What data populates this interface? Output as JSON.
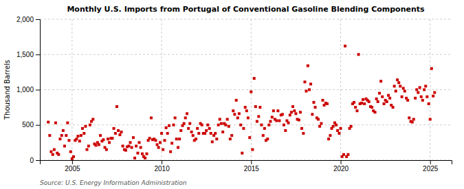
{
  "chart_data": {
    "type": "scatter",
    "title": "Monthly U.S. Imports from Portugal of Conventional Gasoline Blending Components",
    "y_label": "Thousand Barrels",
    "annotations": [
      "Source: U.S. Energy Information Administration"
    ],
    "color": "#cc0000",
    "marker": "square",
    "grid": true,
    "xlim": [
      2003.2,
      2026.2
    ],
    "ylim": [
      0,
      2000
    ],
    "xticks": [
      2005,
      2010,
      2015,
      2020,
      2025
    ],
    "yticks": [
      0,
      500,
      {
        "value": 1000,
        "label": "1,000"
      },
      {
        "value": 1500,
        "label": "1,500"
      },
      {
        "value": 2000,
        "label": "2,000"
      }
    ],
    "x": [
      2003.67,
      2003.75,
      2003.83,
      2003.92,
      2004.0,
      2004.08,
      2004.17,
      2004.25,
      2004.33,
      2004.42,
      2004.5,
      2004.58,
      2004.67,
      2004.75,
      2004.83,
      2004.92,
      2005.0,
      2005.08,
      2005.17,
      2005.25,
      2005.33,
      2005.42,
      2005.5,
      2005.58,
      2005.67,
      2005.75,
      2005.83,
      2005.92,
      2006.0,
      2006.08,
      2006.17,
      2006.25,
      2006.33,
      2006.42,
      2006.5,
      2006.58,
      2006.67,
      2006.75,
      2006.83,
      2006.92,
      2007.0,
      2007.08,
      2007.17,
      2007.25,
      2007.33,
      2007.42,
      2007.5,
      2007.58,
      2007.67,
      2007.75,
      2007.83,
      2007.92,
      2008.0,
      2008.08,
      2008.17,
      2008.25,
      2008.33,
      2008.42,
      2008.5,
      2008.58,
      2008.67,
      2008.75,
      2008.83,
      2008.92,
      2009.0,
      2009.08,
      2009.17,
      2009.25,
      2009.33,
      2009.42,
      2009.5,
      2009.58,
      2009.67,
      2009.75,
      2009.83,
      2009.92,
      2010.0,
      2010.08,
      2010.17,
      2010.25,
      2010.33,
      2010.42,
      2010.5,
      2010.58,
      2010.67,
      2010.75,
      2010.83,
      2010.92,
      2011.0,
      2011.08,
      2011.17,
      2011.25,
      2011.33,
      2011.42,
      2011.5,
      2011.58,
      2011.67,
      2011.75,
      2011.83,
      2011.92,
      2012.0,
      2012.08,
      2012.17,
      2012.25,
      2012.33,
      2012.42,
      2012.5,
      2012.58,
      2012.67,
      2012.75,
      2012.83,
      2012.92,
      2013.0,
      2013.08,
      2013.17,
      2013.25,
      2013.33,
      2013.42,
      2013.5,
      2013.58,
      2013.67,
      2013.75,
      2013.83,
      2013.92,
      2014.0,
      2014.08,
      2014.17,
      2014.25,
      2014.33,
      2014.42,
      2014.5,
      2014.58,
      2014.67,
      2014.75,
      2014.83,
      2014.92,
      2015.0,
      2015.08,
      2015.17,
      2015.25,
      2015.33,
      2015.42,
      2015.5,
      2015.58,
      2015.67,
      2015.75,
      2015.83,
      2015.92,
      2016.0,
      2016.08,
      2016.17,
      2016.25,
      2016.33,
      2016.42,
      2016.5,
      2016.58,
      2016.67,
      2016.75,
      2016.83,
      2016.92,
      2017.0,
      2017.08,
      2017.17,
      2017.25,
      2017.33,
      2017.42,
      2017.5,
      2017.58,
      2017.67,
      2017.75,
      2017.83,
      2017.92,
      2018.0,
      2018.08,
      2018.17,
      2018.25,
      2018.33,
      2018.42,
      2018.5,
      2018.58,
      2018.67,
      2018.75,
      2018.83,
      2018.92,
      2019.0,
      2019.08,
      2019.17,
      2019.25,
      2019.33,
      2019.42,
      2019.5,
      2019.58,
      2019.67,
      2019.75,
      2019.83,
      2019.92,
      2020.0,
      2020.08,
      2020.17,
      2020.25,
      2020.33,
      2020.42,
      2020.5,
      2020.58,
      2020.67,
      2020.75,
      2020.83,
      2020.92,
      2021.0,
      2021.08,
      2021.17,
      2021.25,
      2021.33,
      2021.42,
      2021.5,
      2021.58,
      2021.67,
      2021.75,
      2021.83,
      2021.92,
      2022.0,
      2022.08,
      2022.17,
      2022.25,
      2022.33,
      2022.42,
      2022.5,
      2022.58,
      2022.67,
      2022.75,
      2022.83,
      2022.92,
      2023.0,
      2023.08,
      2023.17,
      2023.25,
      2023.33,
      2023.42,
      2023.5,
      2023.58,
      2023.67,
      2023.75,
      2023.83,
      2023.92,
      2024.0,
      2024.08,
      2024.17,
      2024.25,
      2024.33,
      2024.42,
      2024.5,
      2024.58,
      2024.67,
      2024.75,
      2024.83,
      2024.92,
      2025.0,
      2025.08,
      2025.17,
      2025.25
    ],
    "values": [
      540,
      350,
      120,
      80,
      150,
      530,
      100,
      80,
      300,
      350,
      420,
      200,
      350,
      530,
      280,
      120,
      20,
      50,
      280,
      300,
      340,
      270,
      350,
      450,
      380,
      480,
      150,
      200,
      500,
      550,
      580,
      230,
      210,
      250,
      220,
      350,
      270,
      290,
      180,
      150,
      300,
      250,
      310,
      310,
      450,
      380,
      760,
      420,
      360,
      400,
      200,
      150,
      140,
      190,
      200,
      250,
      180,
      320,
      30,
      200,
      100,
      250,
      180,
      90,
      50,
      30,
      90,
      280,
      310,
      600,
      290,
      300,
      280,
      220,
      180,
      250,
      380,
      150,
      280,
      460,
      380,
      490,
      120,
      240,
      500,
      600,
      300,
      180,
      300,
      420,
      490,
      520,
      600,
      660,
      450,
      520,
      400,
      350,
      280,
      300,
      450,
      380,
      520,
      500,
      380,
      380,
      420,
      500,
      450,
      380,
      260,
      350,
      380,
      300,
      500,
      580,
      520,
      400,
      520,
      500,
      580,
      480,
      300,
      350,
      700,
      650,
      850,
      600,
      660,
      500,
      100,
      450,
      750,
      700,
      600,
      320,
      970,
      150,
      1160,
      760,
      550,
      620,
      750,
      500,
      350,
      450,
      280,
      300,
      500,
      550,
      610,
      700,
      580,
      560,
      700,
      560,
      640,
      650,
      500,
      420,
      560,
      530,
      640,
      680,
      760,
      700,
      660,
      580,
      570,
      680,
      450,
      380,
      1110,
      980,
      1340,
      1000,
      1080,
      650,
      820,
      750,
      600,
      580,
      480,
      520,
      850,
      780,
      810,
      800,
      300,
      350,
      450,
      480,
      530,
      500,
      420,
      380,
      450,
      50,
      80,
      1620,
      50,
      80,
      450,
      480,
      800,
      820,
      750,
      700,
      1500,
      800,
      810,
      860,
      800,
      870,
      850,
      830,
      760,
      750,
      700,
      680,
      870,
      830,
      950,
      1120,
      900,
      800,
      850,
      830,
      920,
      880,
      780,
      750,
      1050,
      980,
      1140,
      1100,
      1050,
      900,
      1020,
      980,
      880,
      850,
      600,
      550,
      540,
      580,
      880,
      1000,
      960,
      1030,
      900,
      850,
      1000,
      1050,
      900,
      800,
      580,
      1300,
      910,
      960
    ]
  }
}
